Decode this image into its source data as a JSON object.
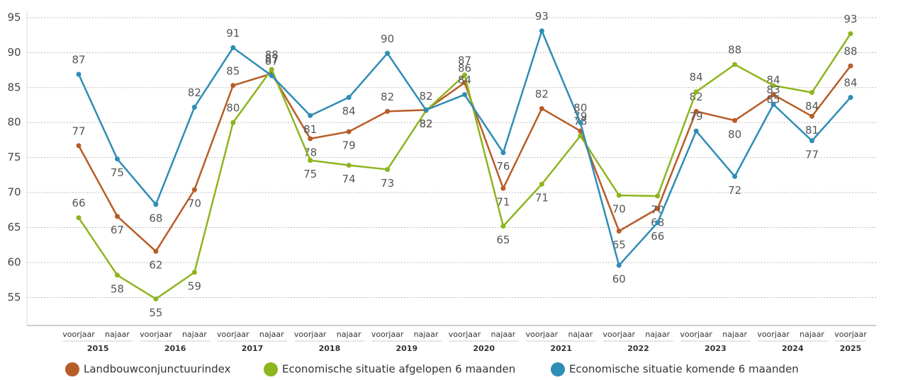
{
  "chart_data": {
    "type": "line",
    "categories": [
      "voorjaar",
      "najaar",
      "voorjaar",
      "najaar",
      "voorjaar",
      "najaar",
      "voorjaar",
      "najaar",
      "voorjaar",
      "najaar",
      "voorjaar",
      "najaar",
      "voorjaar",
      "najaar",
      "voorjaar",
      "najaar",
      "voorjaar",
      "najaar",
      "voorjaar",
      "najaar",
      "voorjaar"
    ],
    "years": [
      "2015",
      "2016",
      "2017",
      "2018",
      "2019",
      "2020",
      "2021",
      "2022",
      "2023",
      "2024",
      "2025"
    ],
    "series": [
      {
        "name": "Landbouwconjunctuurindex",
        "color": "#b85c27",
        "values": [
          76.7,
          66.6,
          61.6,
          70.4,
          85.3,
          87.0,
          77.7,
          78.7,
          81.6,
          81.8,
          85.7,
          70.6,
          82.0,
          78.8,
          64.5,
          67.7,
          81.6,
          80.3,
          84.0,
          80.9,
          88.1
        ],
        "value_labels": [
          "77",
          "67",
          "62",
          "70",
          "85",
          "87",
          "78",
          "79",
          "82",
          "82",
          "86",
          "71",
          "82",
          "79",
          "65",
          "68",
          "82",
          "80",
          "84",
          "81",
          "88"
        ]
      },
      {
        "name": "Economische situatie afgelopen 6 maanden",
        "color": "#8db51e",
        "values": [
          66.4,
          58.2,
          54.8,
          58.6,
          80.0,
          87.6,
          74.6,
          73.9,
          73.3,
          81.7,
          86.8,
          65.2,
          71.2,
          78.1,
          69.6,
          69.5,
          84.4,
          88.3,
          85.3,
          84.3,
          92.7
        ],
        "value_labels": [
          "66",
          "58",
          "55",
          "59",
          "80",
          "88",
          "75",
          "74",
          "73",
          "82",
          "87",
          "65",
          "71",
          "78",
          "70",
          "70",
          "84",
          "88",
          "85",
          "84",
          "93"
        ]
      },
      {
        "name": "Economische situatie komende 6 maanden",
        "color": "#2e8db5",
        "values": [
          86.9,
          74.8,
          68.3,
          82.2,
          90.7,
          86.7,
          81.0,
          83.6,
          89.9,
          81.8,
          84.0,
          75.7,
          93.1,
          80.0,
          59.6,
          65.7,
          78.8,
          72.3,
          82.6,
          77.4,
          83.6
        ],
        "value_labels": [
          "87",
          "75",
          "68",
          "82",
          "91",
          "87",
          "81",
          "84",
          "90",
          "82",
          "84",
          "76",
          "93",
          "80",
          "60",
          "66",
          "79",
          "72",
          "83",
          "77",
          "84"
        ]
      }
    ],
    "ylim": [
      51,
      96
    ],
    "yticks": [
      55,
      60,
      65,
      70,
      75,
      80,
      85,
      90,
      95
    ],
    "grid": true
  }
}
